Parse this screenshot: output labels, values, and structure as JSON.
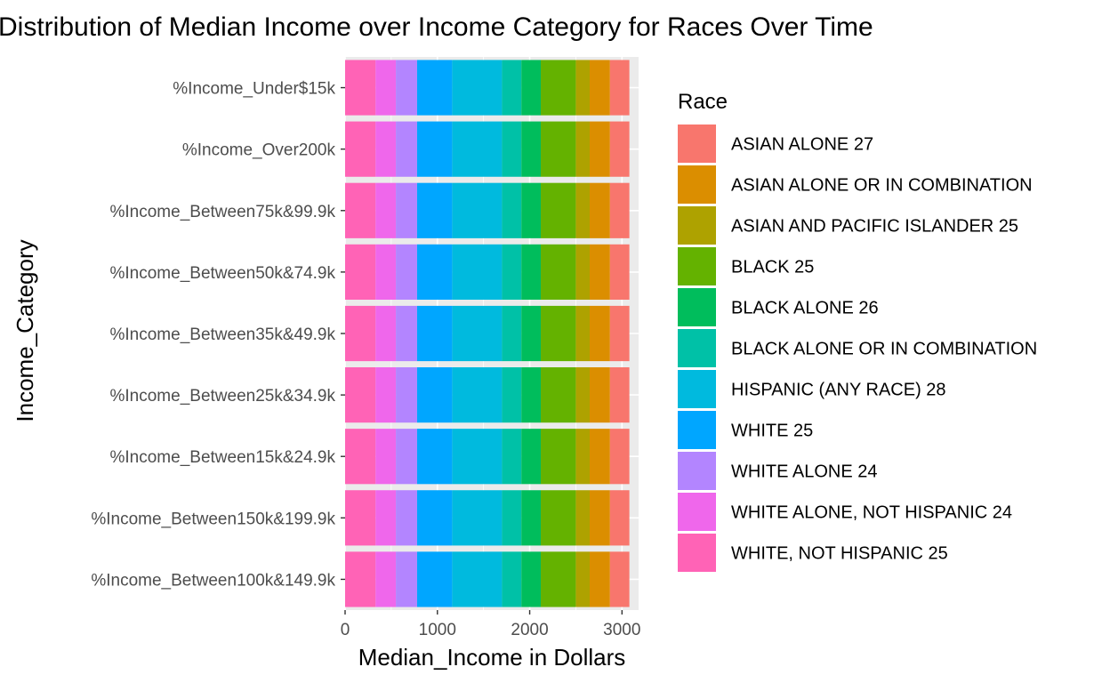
{
  "chart_data": {
    "type": "bar",
    "orientation": "horizontal",
    "stacked": true,
    "title": "Distribution of Median Income over Income Category for Races Over Time",
    "xlabel": "Median_Income in Dollars",
    "ylabel": "Income_Category",
    "xlim": [
      0,
      3180
    ],
    "xticks": [
      0,
      1000,
      2000,
      3000
    ],
    "grid": true,
    "legend_title": "Race",
    "legend_position": "right",
    "categories": [
      "%Income_Under$15k",
      "%Income_Over200k",
      "%Income_Between75k&99.9k",
      "%Income_Between50k&74.9k",
      "%Income_Between35k&49.9k",
      "%Income_Between25k&34.9k",
      "%Income_Between15k&24.9k",
      "%Income_Between150k&199.9k",
      "%Income_Between100k&149.9k"
    ],
    "series": [
      {
        "name": "ASIAN ALONE 27",
        "color": "#F8766D",
        "value": 210
      },
      {
        "name": "ASIAN ALONE OR IN COMBINATION",
        "color": "#DB8E00",
        "value": 220
      },
      {
        "name": "ASIAN AND PACIFIC ISLANDER 25",
        "color": "#AEA200",
        "value": 150
      },
      {
        "name": "BLACK 25",
        "color": "#64B200",
        "value": 380
      },
      {
        "name": "BLACK ALONE 26",
        "color": "#00BD5C",
        "value": 210
      },
      {
        "name": "BLACK ALONE OR IN COMBINATION",
        "color": "#00C1A7",
        "value": 210
      },
      {
        "name": "HISPANIC (ANY RACE) 28",
        "color": "#00BADE",
        "value": 540
      },
      {
        "name": "WHITE 25",
        "color": "#00A6FF",
        "value": 380
      },
      {
        "name": "WHITE ALONE 24",
        "color": "#B385FF",
        "value": 230
      },
      {
        "name": "WHITE ALONE, NOT HISPANIC 24",
        "color": "#EF67EB",
        "value": 220
      },
      {
        "name": "WHITE, NOT HISPANIC 25",
        "color": "#FF63B6",
        "value": 330
      }
    ],
    "stack_order_left_to_right": [
      "WHITE, NOT HISPANIC 25",
      "WHITE ALONE, NOT HISPANIC 24",
      "WHITE ALONE 24",
      "WHITE 25",
      "HISPANIC (ANY RACE) 28",
      "BLACK ALONE OR IN COMBINATION",
      "BLACK ALONE 26",
      "BLACK 25",
      "ASIAN AND PACIFIC ISLANDER 25",
      "ASIAN ALONE OR IN COMBINATION",
      "ASIAN ALONE 27"
    ]
  }
}
